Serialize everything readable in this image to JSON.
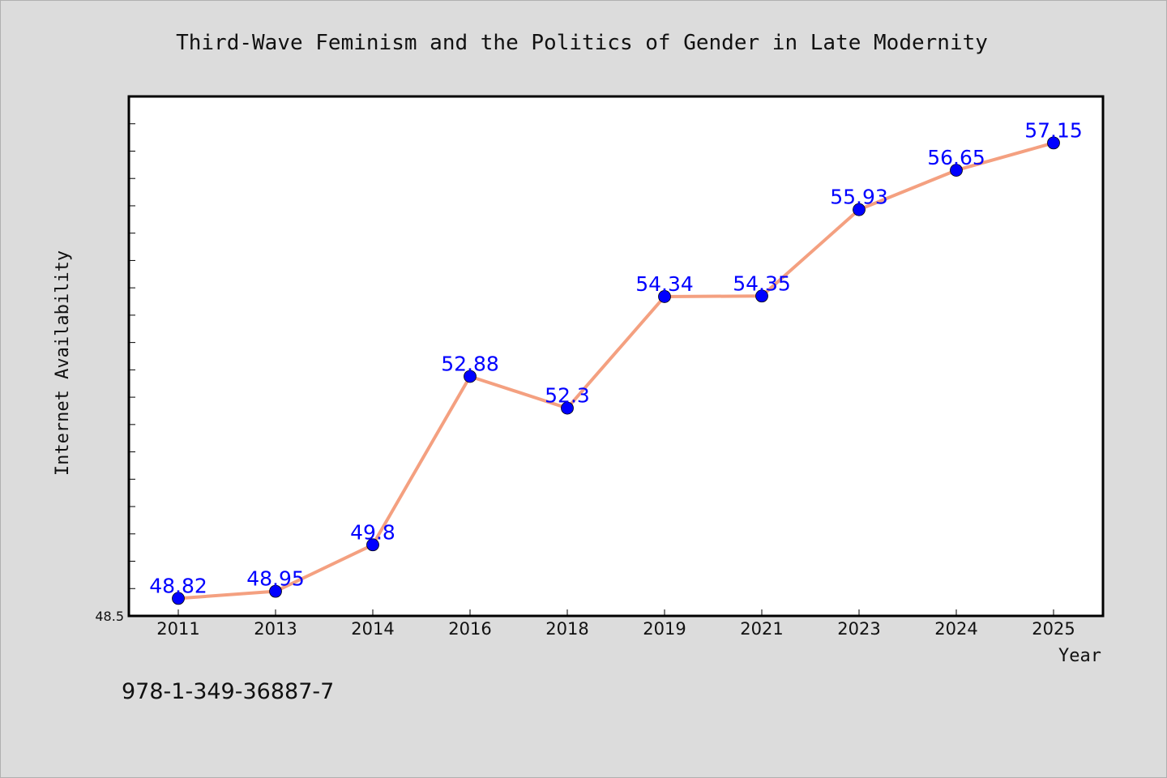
{
  "chart_data": {
    "type": "line",
    "title": "Third-Wave Feminism and the Politics of Gender in Late Modernity",
    "xlabel": "Year",
    "ylabel": "Internet Availability",
    "categories": [
      "2011",
      "2013",
      "2014",
      "2016",
      "2018",
      "2019",
      "2021",
      "2023",
      "2024",
      "2025"
    ],
    "series": [
      {
        "values": [
          48.82,
          48.95,
          49.8,
          52.88,
          52.3,
          54.34,
          54.35,
          55.93,
          56.65,
          57.15
        ]
      }
    ],
    "data_labels": [
      "48.82",
      "48.95",
      "49.8",
      "52.88",
      "52.3",
      "54.34",
      "54.35",
      "55.93",
      "56.65",
      "57.15"
    ],
    "ylim": [
      48.5,
      58.0
    ],
    "yticks_labeled": [
      "48.5"
    ],
    "grid": false,
    "legend": "none",
    "line_color": "#f4a080",
    "marker_color": "#0000ff",
    "label_color": "#0000ff",
    "plot_background": "#ffffff",
    "figure_background": "#dcdcdc"
  },
  "footnote": "978-1-349-36887-7"
}
